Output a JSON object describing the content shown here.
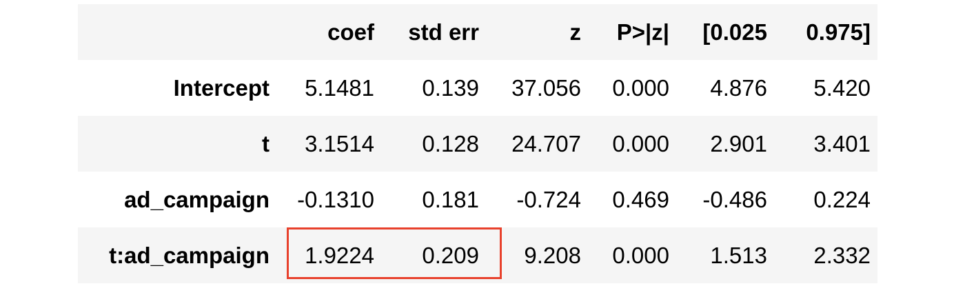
{
  "table": {
    "columns": [
      "",
      "coef",
      "std err",
      "z",
      "P>|z|",
      "[0.025",
      "0.975]"
    ],
    "rows": [
      {
        "label": "Intercept",
        "cells": [
          "5.1481",
          "0.139",
          "37.056",
          "0.000",
          "4.876",
          "5.420"
        ]
      },
      {
        "label": "t",
        "cells": [
          "3.1514",
          "0.128",
          "24.707",
          "0.000",
          "2.901",
          "3.401"
        ]
      },
      {
        "label": "ad_campaign",
        "cells": [
          "-0.1310",
          "0.181",
          "-0.724",
          "0.469",
          "-0.486",
          "0.224"
        ]
      },
      {
        "label": "t:ad_campaign",
        "cells": [
          "1.9224",
          "0.209",
          "9.208",
          "0.000",
          "1.513",
          "2.332"
        ]
      }
    ]
  },
  "highlight": {
    "color": "#e8412c",
    "row": "t:ad_campaign",
    "columns": [
      "coef",
      "std err"
    ]
  },
  "colors": {
    "shaded_row": "#f5f5f5",
    "text": "#000000"
  }
}
